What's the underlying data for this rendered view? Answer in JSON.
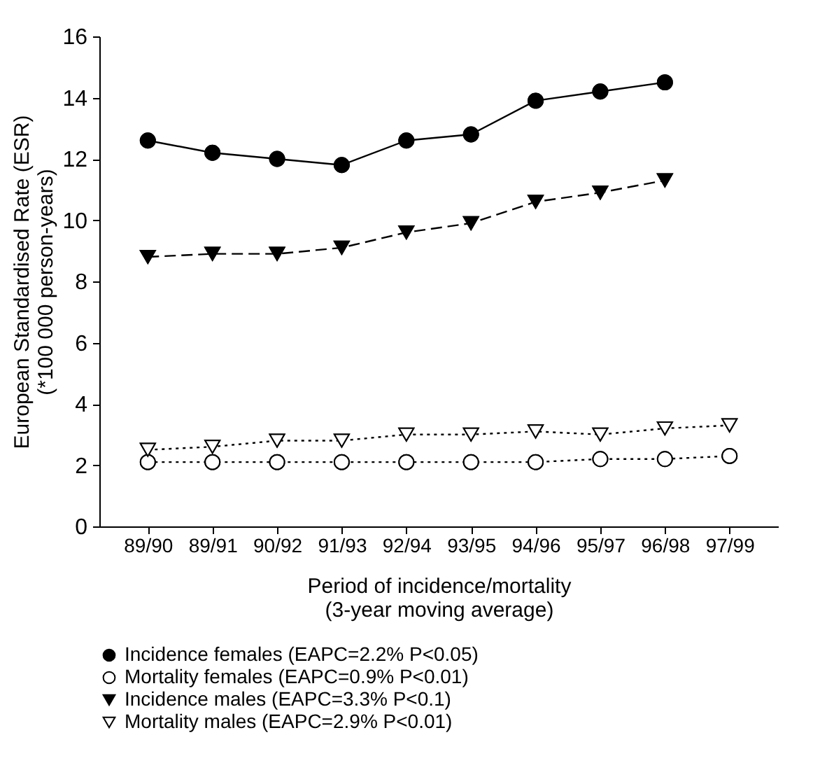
{
  "chart_data": {
    "type": "line",
    "xlabel": "Period of incidence/mortality\n(3-year moving average)",
    "ylabel": "European Standardised Rate (ESR)\n(*100 000 person-years)",
    "categories": [
      "89/90",
      "89/91",
      "90/92",
      "91/93",
      "92/94",
      "93/95",
      "94/96",
      "95/97",
      "96/98",
      "97/99"
    ],
    "series": [
      {
        "name": "Incidence females (EAPC=2.2% P<0.05)",
        "color": "#000000",
        "marker": "circle",
        "line_style": "solid",
        "values": [
          12.6,
          12.2,
          12.0,
          11.8,
          12.6,
          12.8,
          13.9,
          14.2,
          14.5,
          null
        ]
      },
      {
        "name": "Mortality females (EAPC=0.9% P<0.01)",
        "color": "#000000",
        "marker": "circle",
        "line_style": "dotted",
        "values": [
          2.1,
          2.1,
          2.1,
          2.1,
          2.1,
          2.1,
          2.1,
          2.2,
          2.2,
          2.3
        ]
      },
      {
        "name": "Incidence males (EAPC=3.3% P<0.1)",
        "color": "#000000",
        "marker": "triangle",
        "line_style": "dashed",
        "values": [
          8.8,
          8.9,
          8.9,
          9.1,
          9.6,
          9.9,
          10.6,
          10.9,
          11.3,
          null
        ]
      },
      {
        "name": "Mortality males (EAPC=2.9% P<0.01)",
        "color": "#000000",
        "marker": "triangle",
        "line_style": "dotted",
        "values": [
          2.5,
          2.6,
          2.8,
          2.8,
          3.0,
          3.0,
          3.1,
          3.0,
          3.2,
          3.3
        ]
      }
    ],
    "ylim": [
      0,
      16
    ],
    "yticks": [
      0,
      2,
      4,
      6,
      8,
      10,
      12,
      14,
      16
    ],
    "grid": false,
    "legend": "bottom"
  }
}
